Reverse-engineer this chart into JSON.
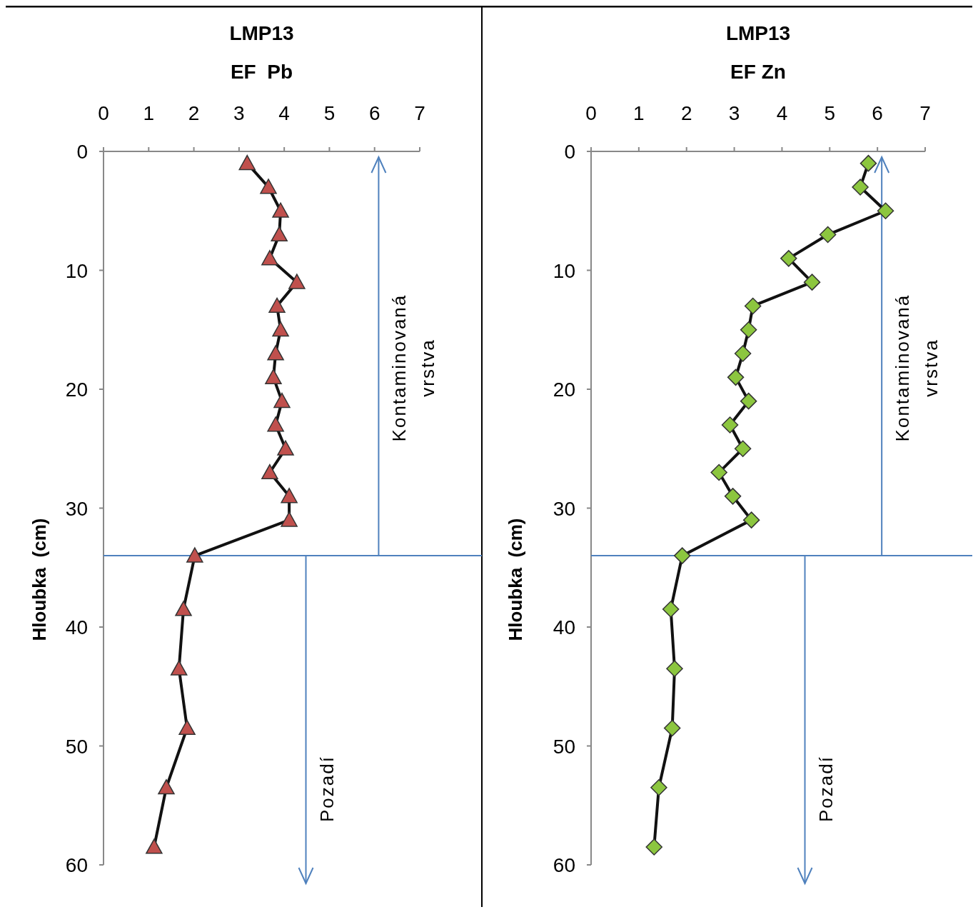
{
  "chart_data": [
    {
      "type": "line",
      "title": "LMP13",
      "subtitle": "EF  Pb",
      "ylabel": "Hloubka  (cm)",
      "xlim": [
        0,
        7
      ],
      "xticks": [
        0,
        1,
        2,
        3,
        4,
        5,
        6,
        7
      ],
      "ylim": [
        60,
        0
      ],
      "yticks": [
        0,
        10,
        20,
        30,
        40,
        50,
        60
      ],
      "grid": false,
      "marker": "triangle",
      "series": [
        {
          "color": "#c0504d",
          "x": [
            3.18,
            3.65,
            3.92,
            3.89,
            3.68,
            4.28,
            3.84,
            3.92,
            3.81,
            3.76,
            3.95,
            3.81,
            4.03,
            3.68,
            4.11,
            4.11,
            2.02,
            1.77,
            1.67,
            1.85,
            1.39,
            1.12
          ],
          "values": [
            1,
            3,
            5,
            7,
            9,
            11,
            13,
            15,
            17,
            19,
            21,
            23,
            25,
            27,
            29,
            31,
            34,
            38.5,
            43.5,
            48.5,
            53.5,
            58.5
          ]
        }
      ],
      "ref_lines": [
        {
          "axis": "y",
          "value": 34,
          "color": "#4f81bd"
        }
      ],
      "annotations": [
        "Kontaminovaná vrstva",
        "Pozadí"
      ]
    },
    {
      "type": "line",
      "title": "LMP13",
      "subtitle": "EF Zn",
      "ylabel": "Hloubka  (cm)",
      "xlim": [
        0,
        7
      ],
      "xticks": [
        0,
        1,
        2,
        3,
        4,
        5,
        6,
        7
      ],
      "ylim": [
        60,
        0
      ],
      "yticks": [
        0,
        10,
        20,
        30,
        40,
        50,
        60
      ],
      "grid": false,
      "marker": "diamond",
      "series": [
        {
          "color": "#8cc63f",
          "x": [
            5.81,
            5.64,
            6.17,
            4.96,
            4.14,
            4.63,
            3.39,
            3.3,
            3.18,
            3.03,
            3.3,
            2.91,
            3.18,
            2.68,
            2.97,
            3.36,
            1.91,
            1.67,
            1.75,
            1.7,
            1.42,
            1.32
          ],
          "values": [
            1,
            3,
            5,
            7,
            9,
            11,
            13,
            15,
            17,
            19,
            21,
            23,
            25,
            27,
            29,
            31,
            34,
            38.5,
            43.5,
            48.5,
            53.5,
            58.5
          ]
        }
      ],
      "ref_lines": [
        {
          "axis": "y",
          "value": 34,
          "color": "#4f81bd"
        }
      ],
      "annotations": [
        "Kontaminovaná vrstva",
        "Pozadí"
      ]
    }
  ]
}
